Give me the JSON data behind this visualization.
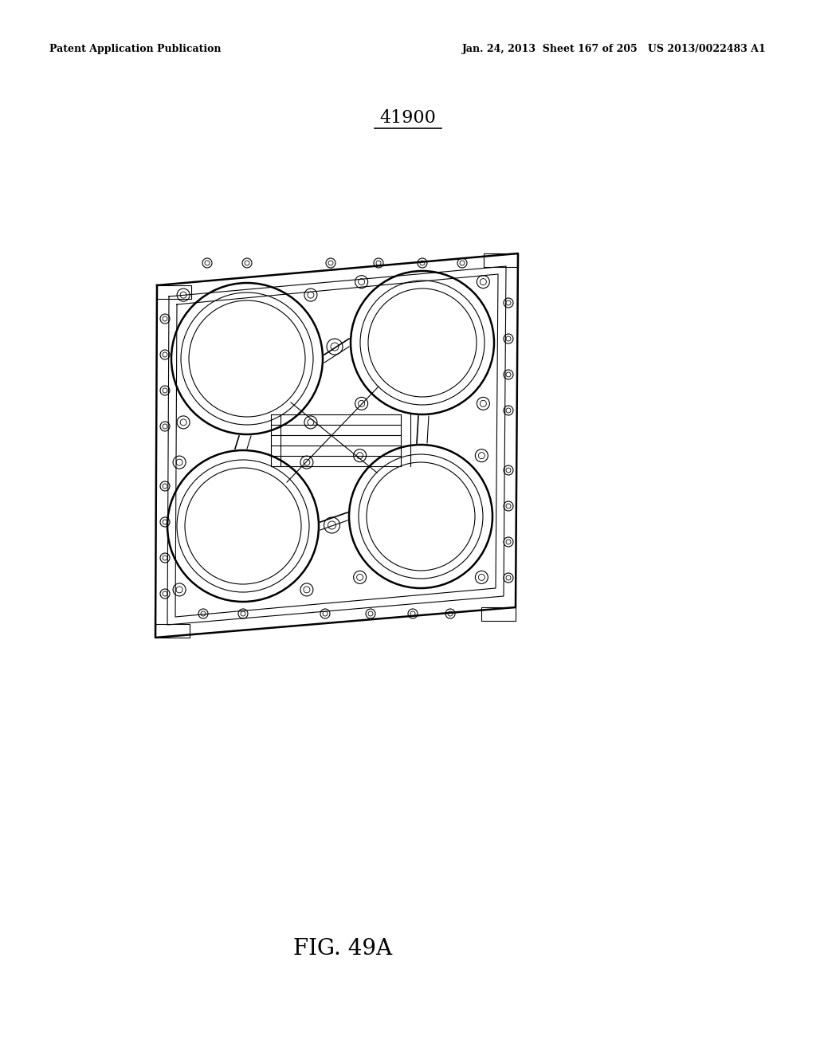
{
  "background_color": "#ffffff",
  "header_left": "Patent Application Publication",
  "header_right": "Jan. 24, 2013  Sheet 167 of 205   US 2013/0022483 A1",
  "figure_label": "41900",
  "figure_caption": "FIG. 49A",
  "header_fontsize": 9,
  "label_fontsize": 16,
  "caption_fontsize": 20,
  "lc": "black",
  "lw_thick": 1.8,
  "lw_med": 1.2,
  "lw_thin": 0.8,
  "c1": [
    310,
    450,
    95
  ],
  "c2": [
    530,
    430,
    90
  ],
  "c3": [
    305,
    660,
    95
  ],
  "c4": [
    528,
    648,
    90
  ]
}
